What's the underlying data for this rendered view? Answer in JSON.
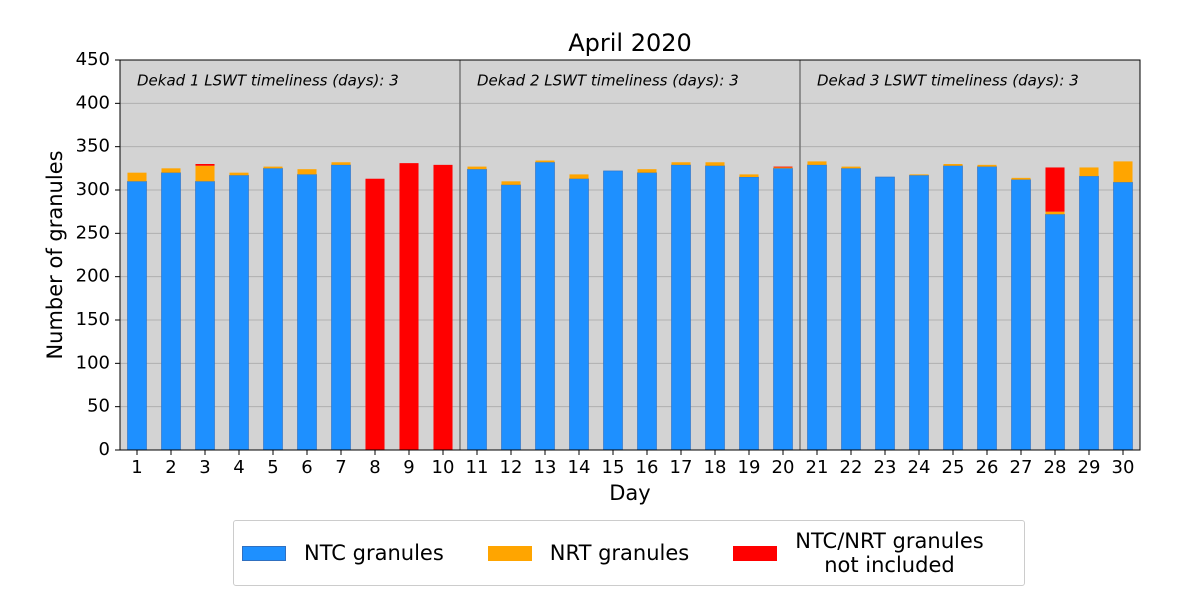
{
  "chart_data": {
    "type": "bar",
    "stacked": true,
    "title": "April 2020",
    "xlabel": "Day",
    "ylabel": "Number of granules",
    "categories": [
      1,
      2,
      3,
      4,
      5,
      6,
      7,
      8,
      9,
      10,
      11,
      12,
      13,
      14,
      15,
      16,
      17,
      18,
      19,
      20,
      21,
      22,
      23,
      24,
      25,
      26,
      27,
      28,
      29,
      30
    ],
    "series": [
      {
        "name": "NTC granules",
        "color": "#1e90ff",
        "values": [
          310,
          320,
          310,
          317,
          325,
          318,
          329,
          0,
          0,
          0,
          324,
          306,
          332,
          313,
          322,
          320,
          329,
          328,
          315,
          325,
          329,
          325,
          315,
          317,
          328,
          327,
          312,
          272,
          316,
          309
        ]
      },
      {
        "name": "NRT granules",
        "color": "#ffa500",
        "values": [
          10,
          5,
          18,
          3,
          2,
          6,
          3,
          0,
          0,
          0,
          3,
          4,
          2,
          5,
          0,
          4,
          3,
          4,
          3,
          1,
          4,
          2,
          0,
          1,
          2,
          2,
          2,
          3,
          10,
          24
        ]
      },
      {
        "name": "NTC/NRT granules\n not included",
        "color": "#ff0000",
        "values": [
          0,
          0,
          2,
          0,
          0,
          0,
          0,
          313,
          331,
          329,
          0,
          0,
          0,
          0,
          0,
          0,
          0,
          0,
          0,
          1,
          0,
          0,
          0,
          0,
          0,
          0,
          0,
          51,
          0,
          0
        ]
      }
    ],
    "annotations": [
      "Dekad 1 LSWT timeliness (days): 3",
      "Dekad 2 LSWT timeliness (days): 3",
      "Dekad 3 LSWT timeliness (days): 3"
    ],
    "ylim": [
      0,
      450
    ],
    "yticks": [
      0,
      50,
      100,
      150,
      200,
      250,
      300,
      350,
      400,
      450
    ],
    "grid": true,
    "legend": "bottom"
  }
}
